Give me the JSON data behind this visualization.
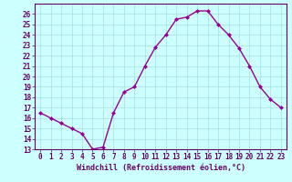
{
  "x": [
    0,
    1,
    2,
    3,
    4,
    5,
    6,
    7,
    8,
    9,
    10,
    11,
    12,
    13,
    14,
    15,
    16,
    17,
    18,
    19,
    20,
    21,
    22,
    23
  ],
  "y": [
    16.5,
    16.0,
    15.5,
    15.0,
    14.5,
    13.0,
    13.2,
    16.5,
    18.5,
    19.0,
    21.0,
    22.8,
    24.0,
    25.5,
    25.7,
    26.3,
    26.3,
    25.0,
    24.0,
    22.7,
    21.0,
    19.0,
    17.8,
    17.0
  ],
  "line_color": "#990099",
  "marker": "D",
  "marker_size": 2.0,
  "bg_color": "#ccffff",
  "grid_color": "#aadddd",
  "xlabel": "Windchill (Refroidissement éolien,°C)",
  "ylim": [
    13,
    27
  ],
  "xlim": [
    -0.5,
    23.5
  ],
  "yticks": [
    13,
    14,
    15,
    16,
    17,
    18,
    19,
    20,
    21,
    22,
    23,
    24,
    25,
    26
  ],
  "xticks": [
    0,
    1,
    2,
    3,
    4,
    5,
    6,
    7,
    8,
    9,
    10,
    11,
    12,
    13,
    14,
    15,
    16,
    17,
    18,
    19,
    20,
    21,
    22,
    23
  ],
  "axis_color": "#660066",
  "tick_color": "#660066",
  "label_color": "#660066",
  "line_width": 1.0,
  "tick_fontsize": 5.5,
  "xlabel_fontsize": 6.0
}
